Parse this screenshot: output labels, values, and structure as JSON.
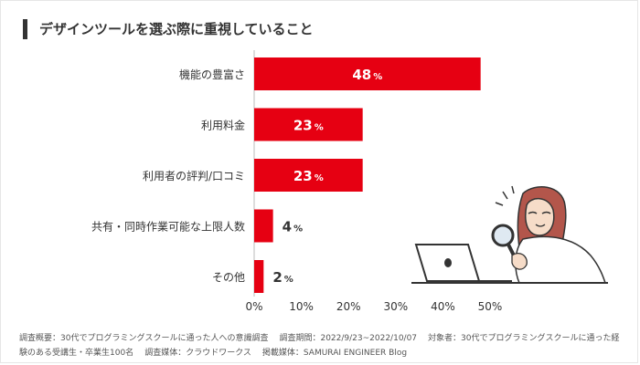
{
  "title": "デザインツールを選ぶ際に重視していること",
  "chart_data": {
    "type": "bar",
    "orientation": "horizontal",
    "title": "デザインツールを選ぶ際に重視していること",
    "categories": [
      "機能の豊富さ",
      "利用料金",
      "利用者の評判/口コミ",
      "共有・同時作業可能な上限人数",
      "その他"
    ],
    "values": [
      48,
      23,
      23,
      4,
      2
    ],
    "value_suffix": "%",
    "xticks": [
      "0%",
      "10%",
      "20%",
      "30%",
      "40%",
      "50%"
    ],
    "xlim": [
      0,
      50
    ],
    "grid": false,
    "bar_color": "#e60012"
  },
  "footnote": {
    "summary": "調査概要：30代でプログラミングスクールに通った人への意識調査",
    "period": "調査期間：2022/9/23~2022/10/07",
    "target": "対象者：30代でプログラミングスクールに通った経験のある受講生・卒業生100名",
    "medium": "調査媒体：クラウドワークス",
    "publisher": "掲載媒体：SAMURAI ENGINEER Blog"
  }
}
